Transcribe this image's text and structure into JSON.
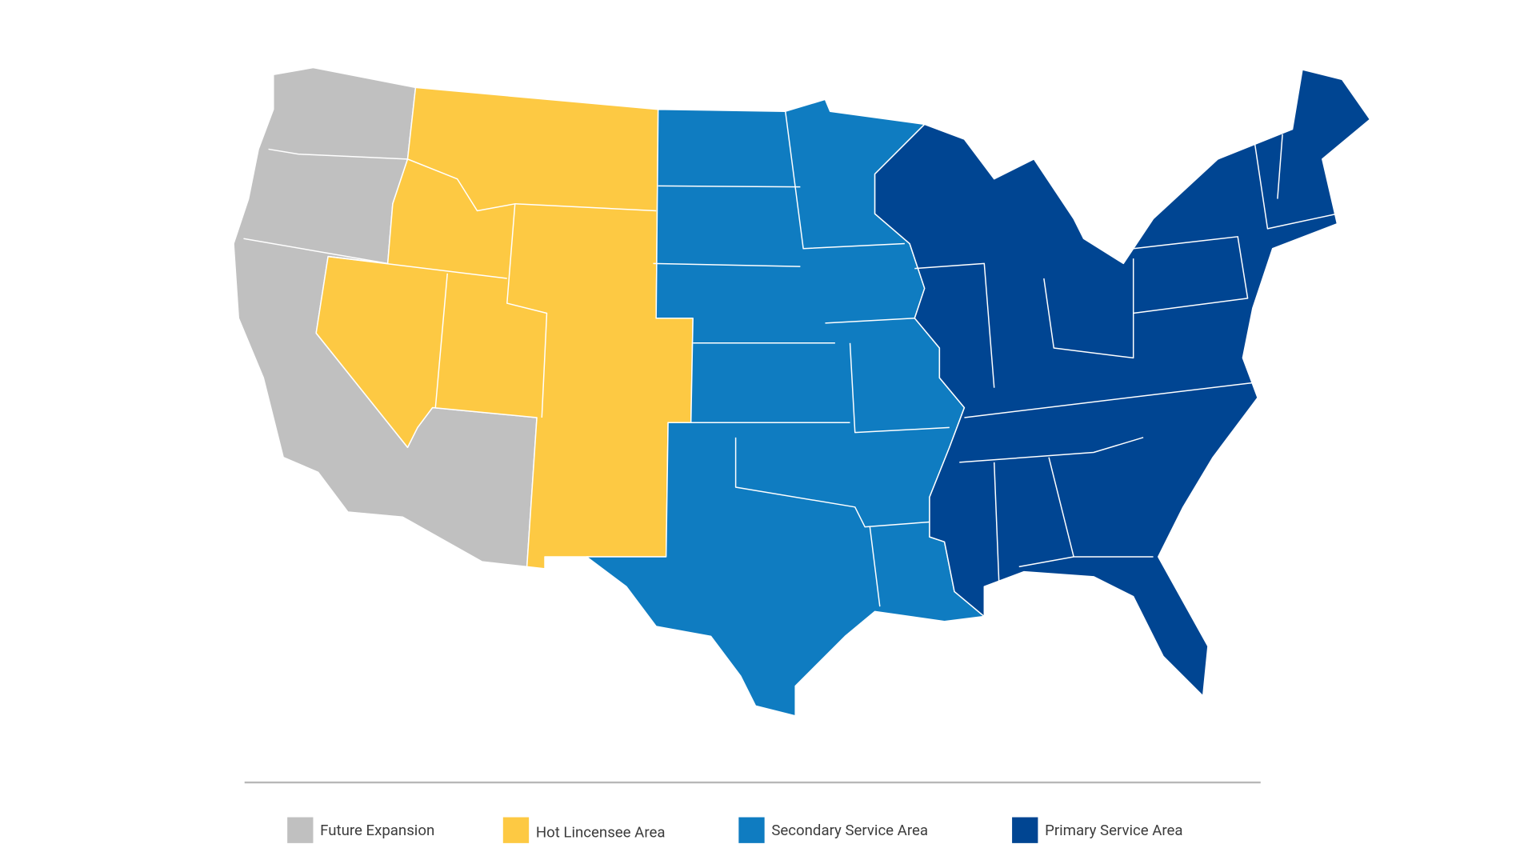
{
  "legend": [
    {
      "label": "Future Expansion",
      "color": "#c0c0c0"
    },
    {
      "label": "Hot Lincensee Area",
      "color": "#fdc943"
    },
    {
      "label": "Secondary Service Area",
      "color": "#0f7cc1"
    },
    {
      "label": "Primary Service Area",
      "color": "#004592"
    }
  ]
}
